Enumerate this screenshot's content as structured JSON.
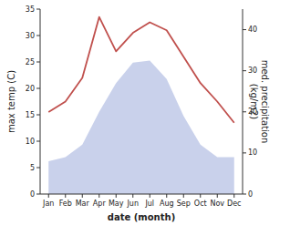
{
  "chart_data": {
    "type": "line",
    "categories": [
      "Jan",
      "Feb",
      "Mar",
      "Apr",
      "May",
      "Jun",
      "Jul",
      "Aug",
      "Sep",
      "Oct",
      "Nov",
      "Dec"
    ],
    "xlabel": "date (month)",
    "ylabel": "max temp (C)",
    "y2label": "med. precipitation\n(kg/m2)",
    "series": [
      {
        "type": "area",
        "axis": "y2",
        "color": "#bfc9e8",
        "values": [
          8,
          9,
          12,
          20,
          27,
          32,
          32.5,
          28,
          19,
          12,
          9,
          9
        ]
      },
      {
        "type": "line",
        "color": "#c0504d",
        "values": [
          15.5,
          17.5,
          22.0,
          33.5,
          27.0,
          30.5,
          32.5,
          31.0,
          26.0,
          21.0,
          17.5,
          13.5
        ]
      }
    ],
    "ylim": [
      0,
      35
    ],
    "yticks": [
      0,
      5,
      10,
      15,
      20,
      25,
      30,
      35
    ],
    "y2lim": [
      0,
      45
    ],
    "y2ticks": [
      0,
      10,
      20,
      30,
      40
    ],
    "background_color": "#ffffff",
    "grid": false
  }
}
